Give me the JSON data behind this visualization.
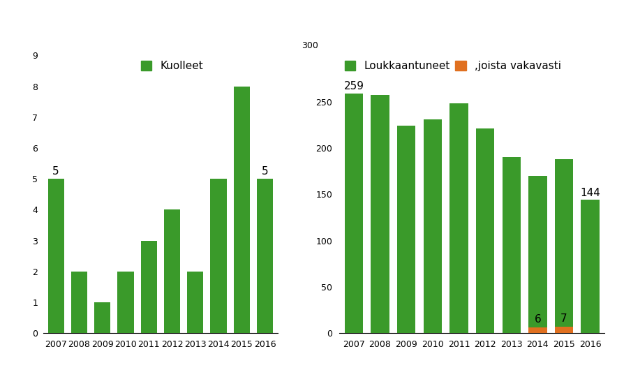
{
  "years": [
    2007,
    2008,
    2009,
    2010,
    2011,
    2012,
    2013,
    2014,
    2015,
    2016
  ],
  "kuolleet": [
    5,
    2,
    1,
    2,
    3,
    4,
    2,
    5,
    8,
    5
  ],
  "kuolleet_labels": {
    "2007": "5",
    "2016": "5"
  },
  "loukkaantuneet": [
    259,
    257,
    224,
    231,
    248,
    221,
    190,
    170,
    188,
    144
  ],
  "loukkaantuneet_labels": {
    "2007": "259",
    "2016": "144"
  },
  "vakavasti": [
    0,
    0,
    0,
    0,
    0,
    0,
    0,
    6,
    7,
    0
  ],
  "vakavasti_labels": {
    "2014": "6",
    "2015": "7"
  },
  "green_color": "#3a9a2a",
  "orange_color": "#e07020",
  "left_ylim": [
    0,
    9
  ],
  "left_yticks": [
    0,
    1,
    2,
    3,
    4,
    5,
    6,
    7,
    8,
    9
  ],
  "right_ylim": [
    0,
    300
  ],
  "right_yticks": [
    0,
    50,
    100,
    150,
    200,
    250
  ],
  "left_legend": "Kuolleet",
  "right_legend1": "Loukkaantuneet",
  "right_legend2": ",joista vakavasti"
}
